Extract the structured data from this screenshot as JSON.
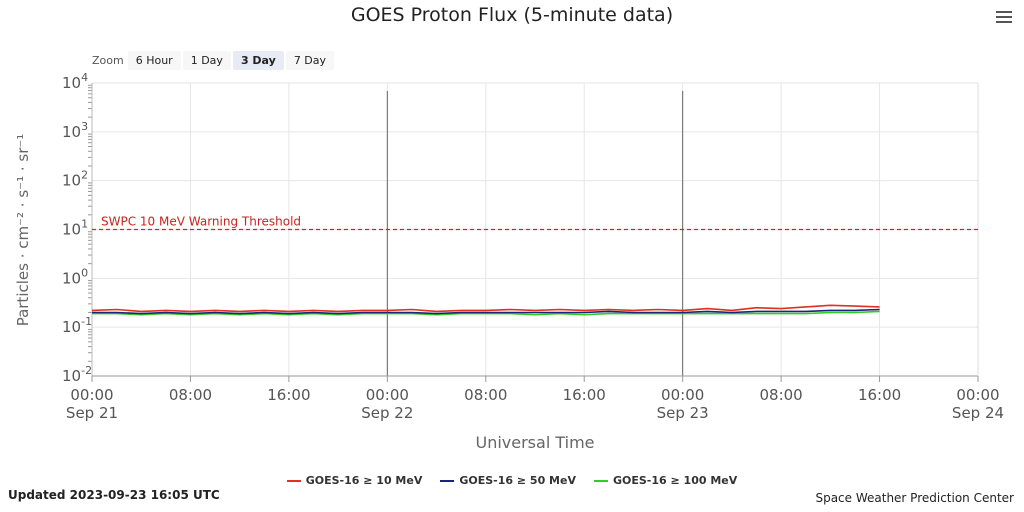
{
  "title": "GOES Proton Flux (5-minute data)",
  "menu_icon": "hamburger-menu-icon",
  "zoom": {
    "label": "Zoom",
    "options": [
      "6 Hour",
      "1 Day",
      "3 Day",
      "7 Day"
    ],
    "selected": "3 Day"
  },
  "threshold_label": "SWPC 10 MeV Warning Threshold",
  "updated": "Updated 2023-09-23 16:05 UTC",
  "credit": "Space Weather Prediction Center",
  "colors": {
    "threshold": "#e02020",
    "grid": "#e6e6e6",
    "day_line": "#666666"
  },
  "chart_data": {
    "type": "line",
    "title": "GOES Proton Flux (5-minute data)",
    "xlabel": "Universal Time",
    "ylabel": "Particles · cm⁻² · s⁻¹ · sr⁻¹",
    "y_scale": "log",
    "ylim": [
      0.01,
      10000
    ],
    "xlim_hours": [
      0,
      72
    ],
    "x_ticks": [
      {
        "hour": 0,
        "time": "00:00",
        "date": "Sep 21"
      },
      {
        "hour": 8,
        "time": "08:00",
        "date": ""
      },
      {
        "hour": 16,
        "time": "16:00",
        "date": ""
      },
      {
        "hour": 24,
        "time": "00:00",
        "date": "Sep 22"
      },
      {
        "hour": 32,
        "time": "08:00",
        "date": ""
      },
      {
        "hour": 40,
        "time": "16:00",
        "date": ""
      },
      {
        "hour": 48,
        "time": "00:00",
        "date": "Sep 23"
      },
      {
        "hour": 56,
        "time": "08:00",
        "date": ""
      },
      {
        "hour": 64,
        "time": "16:00",
        "date": ""
      },
      {
        "hour": 72,
        "time": "00:00",
        "date": "Sep 24"
      }
    ],
    "y_ticks": [
      {
        "exp": "4",
        "value": 10000
      },
      {
        "exp": "3",
        "value": 1000
      },
      {
        "exp": "2",
        "value": 100
      },
      {
        "exp": "1",
        "value": 10
      },
      {
        "exp": "0",
        "value": 1
      },
      {
        "exp": "-1",
        "value": 0.1
      },
      {
        "exp": "-2",
        "value": 0.01
      }
    ],
    "threshold": {
      "value": 10,
      "label": "SWPC 10 MeV Warning Threshold"
    },
    "day_boundaries_hours": [
      24,
      48
    ],
    "grid": true,
    "legend_position": "bottom",
    "x_hours": [
      0,
      2,
      4,
      6,
      8,
      10,
      12,
      14,
      16,
      18,
      20,
      22,
      24,
      26,
      28,
      30,
      32,
      34,
      36,
      38,
      40,
      42,
      44,
      46,
      48,
      50,
      52,
      54,
      56,
      58,
      60,
      62,
      64
    ],
    "series": [
      {
        "name": "GOES-16 ≥ 10 MeV",
        "color": "#e0301e",
        "values": [
          0.22,
          0.23,
          0.21,
          0.22,
          0.21,
          0.22,
          0.21,
          0.22,
          0.21,
          0.22,
          0.21,
          0.22,
          0.22,
          0.23,
          0.21,
          0.22,
          0.22,
          0.23,
          0.22,
          0.23,
          0.22,
          0.23,
          0.22,
          0.23,
          0.22,
          0.24,
          0.22,
          0.25,
          0.24,
          0.26,
          0.28,
          0.27,
          0.26
        ]
      },
      {
        "name": "GOES-16 ≥ 50 MeV",
        "color": "#1a237e",
        "values": [
          0.2,
          0.2,
          0.19,
          0.2,
          0.19,
          0.2,
          0.19,
          0.2,
          0.19,
          0.2,
          0.19,
          0.2,
          0.2,
          0.2,
          0.19,
          0.2,
          0.2,
          0.2,
          0.2,
          0.2,
          0.2,
          0.21,
          0.2,
          0.2,
          0.2,
          0.21,
          0.2,
          0.21,
          0.21,
          0.21,
          0.22,
          0.22,
          0.23
        ]
      },
      {
        "name": "GOES-16 ≥ 100 MeV",
        "color": "#33cc22",
        "values": [
          0.19,
          0.19,
          0.18,
          0.19,
          0.18,
          0.19,
          0.18,
          0.19,
          0.18,
          0.19,
          0.18,
          0.19,
          0.19,
          0.19,
          0.18,
          0.19,
          0.19,
          0.19,
          0.18,
          0.19,
          0.18,
          0.19,
          0.19,
          0.19,
          0.19,
          0.19,
          0.19,
          0.19,
          0.19,
          0.19,
          0.2,
          0.2,
          0.21
        ]
      }
    ]
  }
}
